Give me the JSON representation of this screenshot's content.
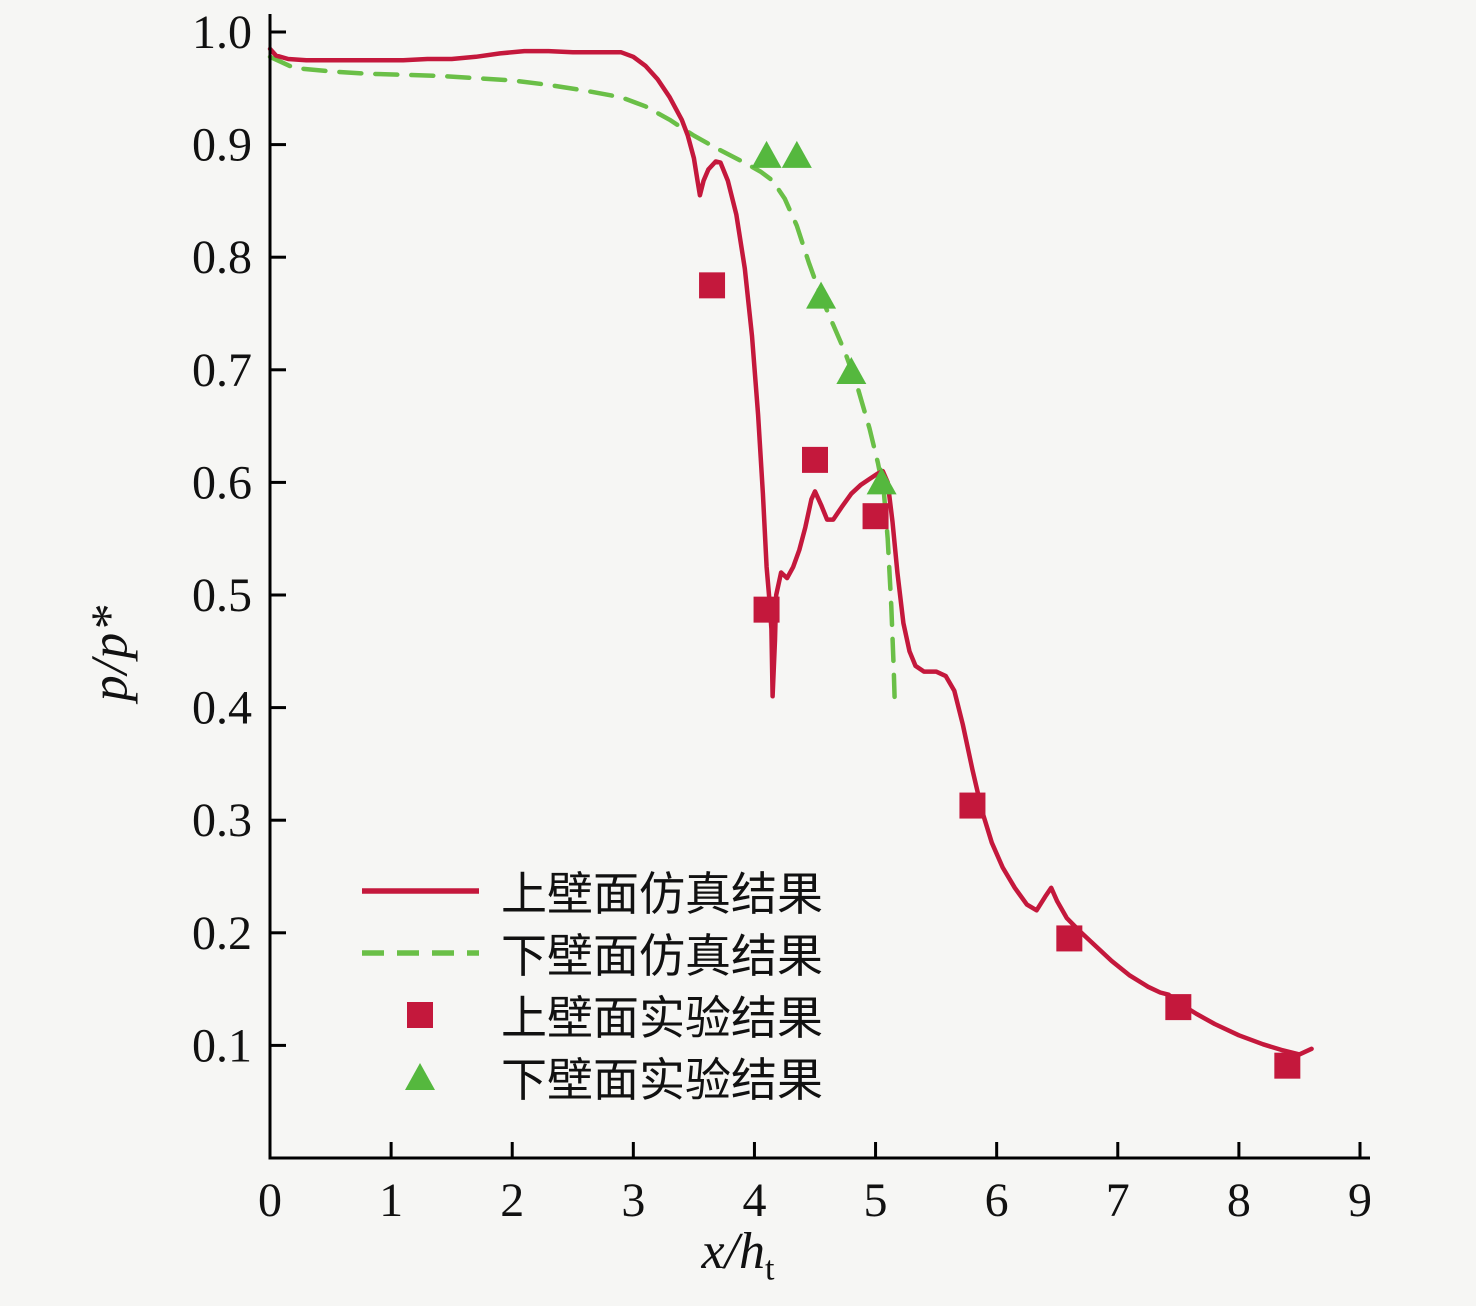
{
  "chart_data": {
    "type": "line",
    "title": "",
    "xlabel": "x/h",
    "xlabel_sub": "t",
    "ylabel": "p/p*",
    "xlim": [
      0,
      9
    ],
    "ylim": [
      0,
      1.0
    ],
    "grid": false,
    "legend_position": "lower-left-inside",
    "xtick_labels": [
      "0",
      "1",
      "2",
      "3",
      "4",
      "5",
      "6",
      "7",
      "8",
      "9"
    ],
    "xtick_values": [
      0,
      1,
      2,
      3,
      4,
      5,
      6,
      7,
      8,
      9
    ],
    "ytick_labels": [
      "0.1",
      "0.2",
      "0.3",
      "0.4",
      "0.5",
      "0.6",
      "0.7",
      "0.8",
      "0.9",
      "1.0"
    ],
    "ytick_values": [
      0.1,
      0.2,
      0.3,
      0.4,
      0.5,
      0.6,
      0.7,
      0.8,
      0.9,
      1.0
    ],
    "series": [
      {
        "name": "上壁面仿真结果",
        "type": "line",
        "style": "solid",
        "color": "#c4183c",
        "points": [
          [
            0,
            0.985
          ],
          [
            0.05,
            0.979
          ],
          [
            0.15,
            0.976
          ],
          [
            0.3,
            0.975
          ],
          [
            0.5,
            0.975
          ],
          [
            0.7,
            0.975
          ],
          [
            0.9,
            0.975
          ],
          [
            1.1,
            0.975
          ],
          [
            1.3,
            0.976
          ],
          [
            1.5,
            0.976
          ],
          [
            1.7,
            0.978
          ],
          [
            1.9,
            0.981
          ],
          [
            2.1,
            0.983
          ],
          [
            2.3,
            0.983
          ],
          [
            2.5,
            0.982
          ],
          [
            2.7,
            0.982
          ],
          [
            2.9,
            0.982
          ],
          [
            3.0,
            0.978
          ],
          [
            3.1,
            0.97
          ],
          [
            3.2,
            0.958
          ],
          [
            3.3,
            0.942
          ],
          [
            3.4,
            0.922
          ],
          [
            3.45,
            0.908
          ],
          [
            3.5,
            0.888
          ],
          [
            3.53,
            0.868
          ],
          [
            3.55,
            0.855
          ],
          [
            3.58,
            0.868
          ],
          [
            3.62,
            0.878
          ],
          [
            3.68,
            0.885
          ],
          [
            3.72,
            0.884
          ],
          [
            3.78,
            0.868
          ],
          [
            3.85,
            0.838
          ],
          [
            3.92,
            0.79
          ],
          [
            3.98,
            0.73
          ],
          [
            4.03,
            0.66
          ],
          [
            4.07,
            0.59
          ],
          [
            4.1,
            0.525
          ],
          [
            4.12,
            0.5
          ],
          [
            4.14,
            0.47
          ],
          [
            4.15,
            0.41
          ],
          [
            4.17,
            0.46
          ],
          [
            4.18,
            0.5
          ],
          [
            4.22,
            0.52
          ],
          [
            4.27,
            0.515
          ],
          [
            4.32,
            0.525
          ],
          [
            4.37,
            0.54
          ],
          [
            4.42,
            0.56
          ],
          [
            4.47,
            0.585
          ],
          [
            4.5,
            0.592
          ],
          [
            4.55,
            0.58
          ],
          [
            4.6,
            0.567
          ],
          [
            4.65,
            0.567
          ],
          [
            4.72,
            0.578
          ],
          [
            4.8,
            0.59
          ],
          [
            4.88,
            0.598
          ],
          [
            4.95,
            0.603
          ],
          [
            5.02,
            0.608
          ],
          [
            5.06,
            0.61
          ],
          [
            5.1,
            0.6
          ],
          [
            5.14,
            0.565
          ],
          [
            5.18,
            0.52
          ],
          [
            5.23,
            0.475
          ],
          [
            5.28,
            0.45
          ],
          [
            5.33,
            0.437
          ],
          [
            5.4,
            0.432
          ],
          [
            5.5,
            0.432
          ],
          [
            5.58,
            0.428
          ],
          [
            5.65,
            0.415
          ],
          [
            5.72,
            0.385
          ],
          [
            5.8,
            0.345
          ],
          [
            5.88,
            0.308
          ],
          [
            5.96,
            0.28
          ],
          [
            6.05,
            0.258
          ],
          [
            6.15,
            0.24
          ],
          [
            6.25,
            0.225
          ],
          [
            6.33,
            0.22
          ],
          [
            6.4,
            0.232
          ],
          [
            6.45,
            0.24
          ],
          [
            6.5,
            0.228
          ],
          [
            6.58,
            0.213
          ],
          [
            6.68,
            0.202
          ],
          [
            6.8,
            0.19
          ],
          [
            6.95,
            0.175
          ],
          [
            7.1,
            0.162
          ],
          [
            7.25,
            0.152
          ],
          [
            7.35,
            0.147
          ],
          [
            7.42,
            0.145
          ],
          [
            7.5,
            0.138
          ],
          [
            7.65,
            0.128
          ],
          [
            7.8,
            0.119
          ],
          [
            8.0,
            0.109
          ],
          [
            8.2,
            0.101
          ],
          [
            8.35,
            0.096
          ],
          [
            8.5,
            0.092
          ],
          [
            8.6,
            0.097
          ]
        ]
      },
      {
        "name": "下壁面仿真结果",
        "type": "line",
        "style": "dashed",
        "color": "#6abf47",
        "points": [
          [
            0,
            0.978
          ],
          [
            0.2,
            0.968
          ],
          [
            0.5,
            0.965
          ],
          [
            0.8,
            0.963
          ],
          [
            1.1,
            0.962
          ],
          [
            1.4,
            0.961
          ],
          [
            1.7,
            0.959
          ],
          [
            2.0,
            0.957
          ],
          [
            2.3,
            0.953
          ],
          [
            2.6,
            0.948
          ],
          [
            2.9,
            0.942
          ],
          [
            3.1,
            0.934
          ],
          [
            3.3,
            0.922
          ],
          [
            3.5,
            0.908
          ],
          [
            3.7,
            0.896
          ],
          [
            3.9,
            0.885
          ],
          [
            4.05,
            0.876
          ],
          [
            4.15,
            0.868
          ],
          [
            4.25,
            0.852
          ],
          [
            4.35,
            0.828
          ],
          [
            4.45,
            0.795
          ],
          [
            4.55,
            0.765
          ],
          [
            4.65,
            0.74
          ],
          [
            4.75,
            0.715
          ],
          [
            4.85,
            0.685
          ],
          [
            4.95,
            0.648
          ],
          [
            5.02,
            0.617
          ],
          [
            5.07,
            0.59
          ],
          [
            5.1,
            0.55
          ],
          [
            5.13,
            0.49
          ],
          [
            5.15,
            0.435
          ],
          [
            5.16,
            0.4
          ]
        ]
      },
      {
        "name": "上壁面实验结果",
        "type": "scatter",
        "marker": "square",
        "color": "#c4183c",
        "points": [
          [
            3.65,
            0.775
          ],
          [
            4.1,
            0.487
          ],
          [
            4.5,
            0.62
          ],
          [
            5.0,
            0.57
          ],
          [
            5.8,
            0.313
          ],
          [
            6.6,
            0.195
          ],
          [
            7.5,
            0.134
          ],
          [
            8.4,
            0.082
          ]
        ]
      },
      {
        "name": "下壁面实验结果",
        "type": "scatter",
        "marker": "triangle",
        "color": "#55b83e",
        "points": [
          [
            4.1,
            0.89
          ],
          [
            4.35,
            0.89
          ],
          [
            4.55,
            0.765
          ],
          [
            4.8,
            0.698
          ],
          [
            5.05,
            0.6
          ]
        ]
      }
    ]
  },
  "colors": {
    "axis": "#000000",
    "text": "#111111",
    "background": "#f6f6f4"
  }
}
